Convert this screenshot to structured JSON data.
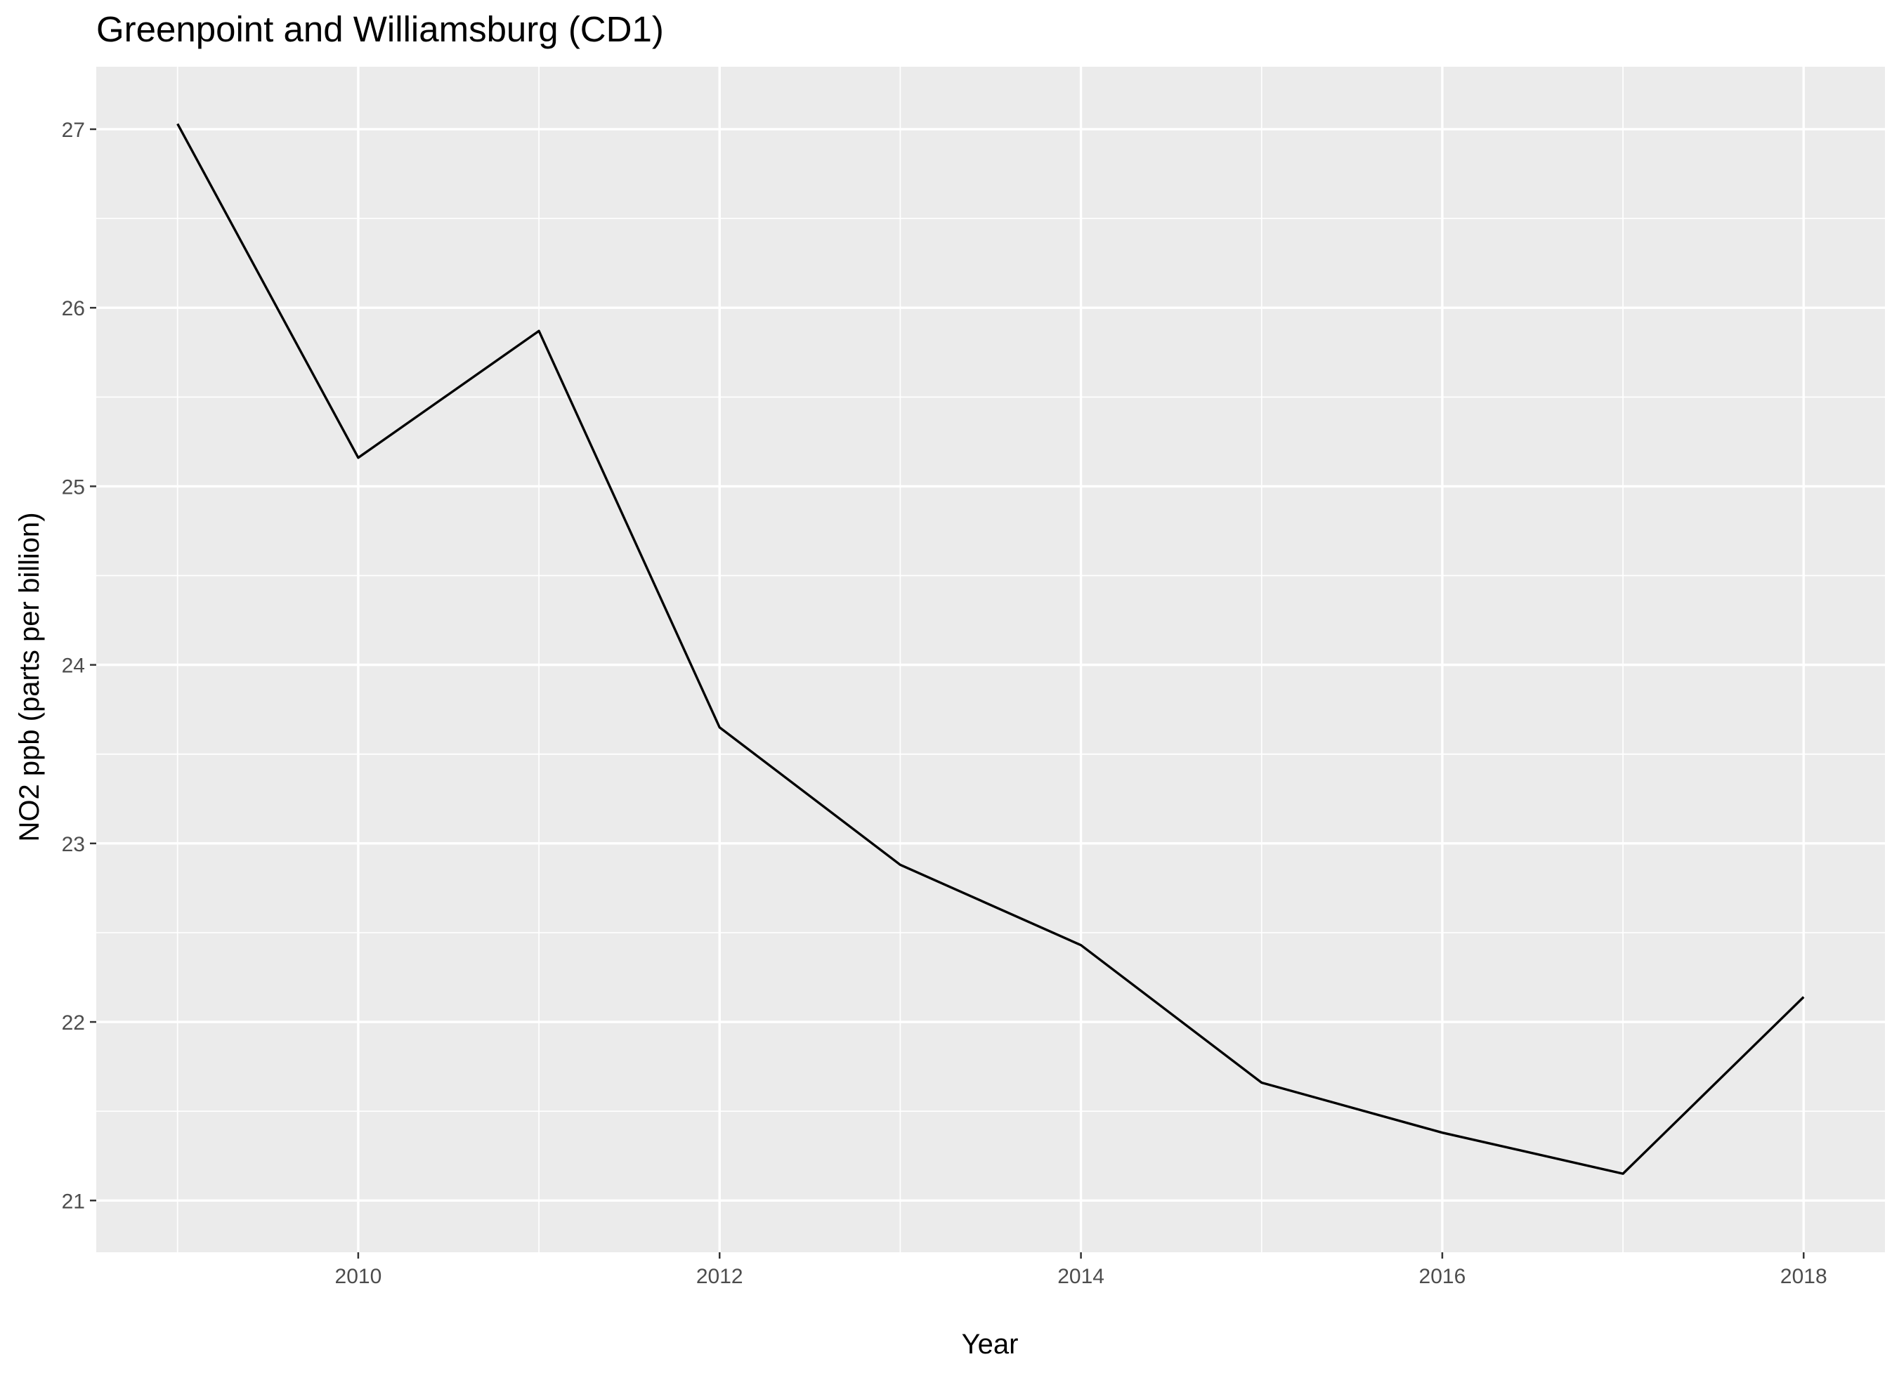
{
  "chart_data": {
    "type": "line",
    "title": "Greenpoint and Williamsburg (CD1)",
    "xlabel": "Year",
    "ylabel": "NO2 ppb (parts per billion)",
    "x": [
      2009,
      2010,
      2011,
      2012,
      2013,
      2014,
      2015,
      2016,
      2017,
      2018
    ],
    "series": [
      {
        "values": [
          27.03,
          25.16,
          25.87,
          23.65,
          22.88,
          22.43,
          21.66,
          21.38,
          21.15,
          22.14
        ]
      }
    ],
    "xlim": [
      2008.55,
      2018.45
    ],
    "ylim": [
      20.71,
      27.35
    ],
    "x_ticks": [
      2010,
      2012,
      2014,
      2016,
      2018
    ],
    "x_tick_labels": [
      "2010",
      "2012",
      "2014",
      "2016",
      "2018"
    ],
    "y_ticks": [
      21,
      22,
      23,
      24,
      25,
      26,
      27
    ],
    "y_tick_labels": [
      "21",
      "22",
      "23",
      "24",
      "25",
      "26",
      "27"
    ],
    "grid": true,
    "legend": "none",
    "colors": {
      "panel_background": "#ebebeb",
      "grid": "#ffffff",
      "line": "#000000",
      "tick_text": "#4d4d4d"
    }
  }
}
